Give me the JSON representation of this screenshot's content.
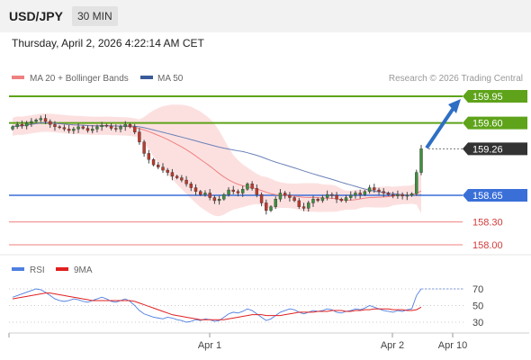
{
  "header": {
    "pair": "USD/JPY",
    "timeframe": "30 MIN",
    "datetime": "Thursday, April 2, 2026 4:22:14 AM CET"
  },
  "legend": {
    "ma20": "MA 20 + Bollinger Bands",
    "ma50": "MA 50",
    "copyright": "Research © 2026 Trading Central"
  },
  "colors": {
    "green_level": "#5ea31a",
    "blue_level": "#3a6fd8",
    "red_level": "#f08080",
    "bull": "#3d8f3d",
    "bear": "#c0392b",
    "bollinger_fill": "#fbd3d3",
    "ma20": "#f08080",
    "ma50": "#6a80b8",
    "arrow": "#2e6fc4",
    "rsi": "#4f7fe0",
    "rsi_ma": "#e02020"
  },
  "chart_data": [
    {
      "type": "candlestick",
      "levels": [
        {
          "value": 159.95,
          "label": "159.95",
          "style": "resistance",
          "color": "#5ea31a"
        },
        {
          "value": 159.6,
          "label": "159.60",
          "style": "resistance",
          "color": "#5ea31a"
        },
        {
          "value": 159.26,
          "label": "159.26",
          "style": "last_price",
          "color": "#333333"
        },
        {
          "value": 158.65,
          "label": "158.65",
          "style": "pivot",
          "color": "#3a6fd8"
        },
        {
          "value": 158.3,
          "label": "158.30",
          "style": "support",
          "color": "#f08080"
        },
        {
          "value": 158.0,
          "label": "158.00",
          "style": "support",
          "color": "#f08080"
        }
      ],
      "x_ticks": [
        "Apr 1",
        "Apr 2",
        "Apr 10"
      ],
      "series": [
        {
          "name": "MA 20 + Bollinger Bands",
          "role": "ma20_bb"
        },
        {
          "name": "MA 50",
          "role": "ma50"
        }
      ],
      "close": [
        159.55,
        159.58,
        159.56,
        159.6,
        159.62,
        159.64,
        159.66,
        159.62,
        159.58,
        159.55,
        159.54,
        159.52,
        159.5,
        159.52,
        159.55,
        159.53,
        159.5,
        159.52,
        159.55,
        159.57,
        159.56,
        159.53,
        159.52,
        159.55,
        159.58,
        159.55,
        159.48,
        159.35,
        159.2,
        159.12,
        159.05,
        159.02,
        158.98,
        158.95,
        158.9,
        158.88,
        158.85,
        158.8,
        158.75,
        158.7,
        158.66,
        158.68,
        158.62,
        158.58,
        158.6,
        158.66,
        158.72,
        158.7,
        158.68,
        158.73,
        158.8,
        158.74,
        158.66,
        158.55,
        158.45,
        158.5,
        158.6,
        158.68,
        158.65,
        158.62,
        158.58,
        158.5,
        158.48,
        158.55,
        158.6,
        158.58,
        158.62,
        158.66,
        158.65,
        158.6,
        158.58,
        158.62,
        158.65,
        158.68,
        158.66,
        158.7,
        158.75,
        158.72,
        158.7,
        158.68,
        158.66,
        158.64,
        158.66,
        158.64,
        158.65,
        158.67,
        158.95,
        159.26
      ]
    },
    {
      "type": "line",
      "title": "RSI",
      "legend": [
        "RSI",
        "9MA"
      ],
      "y_ticks": [
        70,
        50,
        30
      ],
      "ylim": [
        20,
        80
      ],
      "series": [
        {
          "name": "RSI",
          "values": [
            60,
            62,
            64,
            66,
            68,
            70,
            69,
            66,
            62,
            58,
            56,
            55,
            56,
            58,
            57,
            55,
            54,
            56,
            58,
            60,
            58,
            55,
            54,
            56,
            58,
            55,
            50,
            44,
            40,
            38,
            36,
            35,
            34,
            36,
            35,
            33,
            32,
            30,
            31,
            33,
            32,
            34,
            33,
            31,
            32,
            36,
            40,
            42,
            41,
            43,
            46,
            44,
            40,
            36,
            32,
            34,
            38,
            42,
            44,
            46,
            45,
            42,
            40,
            42,
            44,
            43,
            44,
            46,
            45,
            42,
            41,
            43,
            44,
            46,
            45,
            47,
            50,
            48,
            46,
            44,
            43,
            42,
            44,
            43,
            45,
            46,
            62,
            70
          ]
        },
        {
          "name": "9MA",
          "values": [
            58,
            59,
            60,
            61,
            62,
            63,
            64,
            65,
            65,
            64,
            63,
            62,
            61,
            60,
            59,
            58,
            57,
            56,
            56,
            56,
            56,
            56,
            56,
            56,
            56,
            56,
            55,
            53,
            51,
            49,
            47,
            45,
            43,
            41,
            39,
            38,
            37,
            36,
            35,
            34,
            33,
            33,
            33,
            33,
            33,
            33,
            34,
            35,
            36,
            37,
            38,
            39,
            39,
            39,
            38,
            38,
            38,
            38,
            39,
            40,
            41,
            42,
            42,
            42,
            42,
            43,
            43,
            43,
            44,
            44,
            44,
            43,
            43,
            44,
            44,
            45,
            45,
            46,
            46,
            46,
            46,
            45,
            45,
            45,
            44,
            44,
            45,
            48
          ]
        }
      ]
    }
  ]
}
